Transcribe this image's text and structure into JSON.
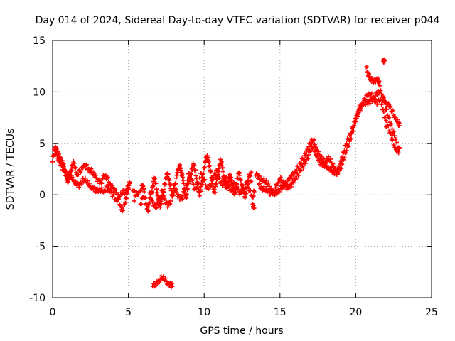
{
  "chart_data": {
    "type": "scatter",
    "title": "Day 014 of 2024, Sidereal Day-to-day VTEC variation (SDTVAR) for receiver p044",
    "xlabel": "GPS time / hours",
    "ylabel": "SDTVAR / TECUs",
    "xlim": [
      0,
      25
    ],
    "ylim": [
      -10,
      15
    ],
    "xticks": [
      0,
      5,
      10,
      15,
      20,
      25
    ],
    "yticks": [
      -10,
      -5,
      0,
      5,
      10,
      15
    ],
    "xtick_labels": [
      "0",
      "5",
      "10",
      "15",
      "20",
      "25"
    ],
    "ytick_labels": [
      "-10",
      "-5",
      "0",
      "5",
      "10",
      "15"
    ],
    "grid": true,
    "marker": "+",
    "series_color": "#ff0000",
    "series": [
      {
        "name": "SDTVAR",
        "points": [
          [
            0.0,
            3.2
          ],
          [
            0.1,
            4.4
          ],
          [
            0.2,
            4.6
          ],
          [
            0.3,
            4.2
          ],
          [
            0.4,
            3.9
          ],
          [
            0.5,
            3.6
          ],
          [
            0.6,
            3.3
          ],
          [
            0.7,
            2.9
          ],
          [
            0.8,
            2.4
          ],
          [
            0.9,
            1.8
          ],
          [
            1.0,
            1.2
          ],
          [
            1.1,
            1.6
          ],
          [
            1.2,
            2.3
          ],
          [
            1.3,
            2.9
          ],
          [
            1.4,
            3.1
          ],
          [
            1.5,
            2.6
          ],
          [
            1.6,
            2.0
          ],
          [
            1.8,
            2.3
          ],
          [
            2.0,
            2.6
          ],
          [
            2.2,
            2.9
          ],
          [
            2.4,
            2.5
          ],
          [
            2.6,
            2.2
          ],
          [
            2.8,
            1.7
          ],
          [
            3.0,
            1.5
          ],
          [
            3.2,
            1.2
          ],
          [
            3.4,
            1.8
          ],
          [
            3.6,
            1.6
          ],
          [
            3.8,
            1.1
          ],
          [
            4.0,
            0.6
          ],
          [
            4.2,
            0.2
          ],
          [
            4.3,
            -0.4
          ],
          [
            4.5,
            -1.1
          ],
          [
            4.6,
            -1.6
          ],
          [
            4.8,
            -0.8
          ],
          [
            4.9,
            0.1
          ],
          [
            5.0,
            0.7
          ],
          [
            5.1,
            1.1
          ],
          [
            0.2,
            3.9
          ],
          [
            0.4,
            3.4
          ],
          [
            0.6,
            2.8
          ],
          [
            0.8,
            2.2
          ],
          [
            1.0,
            2.0
          ],
          [
            1.2,
            1.9
          ],
          [
            1.4,
            1.3
          ],
          [
            1.6,
            0.9
          ],
          [
            1.8,
            1.0
          ],
          [
            2.0,
            1.6
          ],
          [
            2.2,
            1.3
          ],
          [
            2.4,
            0.9
          ],
          [
            2.6,
            0.8
          ],
          [
            2.8,
            0.6
          ],
          [
            3.0,
            0.3
          ],
          [
            3.2,
            0.5
          ],
          [
            3.4,
            0.4
          ],
          [
            3.6,
            0.7
          ],
          [
            3.8,
            0.3
          ],
          [
            4.0,
            0.0
          ],
          [
            4.2,
            -0.5
          ],
          [
            4.4,
            -0.2
          ],
          [
            4.6,
            0.1
          ],
          [
            4.8,
            0.4
          ],
          [
            5.0,
            0.9
          ],
          [
            5.3,
            0.4
          ],
          [
            5.5,
            -0.1
          ],
          [
            5.7,
            0.3
          ],
          [
            5.9,
            0.9
          ],
          [
            6.0,
            0.6
          ],
          [
            6.1,
            -0.3
          ],
          [
            6.2,
            -1.0
          ],
          [
            6.3,
            -1.6
          ],
          [
            6.4,
            -0.8
          ],
          [
            6.5,
            0.1
          ],
          [
            6.6,
            0.9
          ],
          [
            6.7,
            1.6
          ],
          [
            6.8,
            1.1
          ],
          [
            6.9,
            0.2
          ],
          [
            7.0,
            -0.6
          ],
          [
            7.1,
            -1.2
          ],
          [
            7.2,
            -0.5
          ],
          [
            7.3,
            0.3
          ],
          [
            7.4,
            1.0
          ],
          [
            7.5,
            1.7
          ],
          [
            7.6,
            2.1
          ],
          [
            7.7,
            1.4
          ],
          [
            7.8,
            0.6
          ],
          [
            7.9,
            -0.2
          ],
          [
            8.0,
            0.3
          ],
          [
            8.1,
            1.1
          ],
          [
            8.2,
            1.9
          ],
          [
            8.3,
            2.5
          ],
          [
            8.4,
            2.9
          ],
          [
            8.5,
            2.2
          ],
          [
            8.6,
            1.4
          ],
          [
            8.7,
            0.6
          ],
          [
            8.8,
            -0.3
          ],
          [
            8.9,
            0.5
          ],
          [
            9.0,
            1.3
          ],
          [
            9.1,
            2.0
          ],
          [
            9.2,
            2.6
          ],
          [
            9.3,
            2.9
          ],
          [
            9.4,
            2.4
          ],
          [
            9.5,
            1.6
          ],
          [
            9.6,
            0.7
          ],
          [
            9.7,
            -0.1
          ],
          [
            9.8,
            0.8
          ],
          [
            9.9,
            1.7
          ],
          [
            10.0,
            2.6
          ],
          [
            10.1,
            3.3
          ],
          [
            10.2,
            3.8
          ],
          [
            10.3,
            3.2
          ],
          [
            10.4,
            2.4
          ],
          [
            10.5,
            1.6
          ],
          [
            10.6,
            0.8
          ],
          [
            10.7,
            0.2
          ],
          [
            10.8,
            1.1
          ],
          [
            10.9,
            2.0
          ],
          [
            11.0,
            2.9
          ],
          [
            11.1,
            3.3
          ],
          [
            11.2,
            2.6
          ],
          [
            11.3,
            1.8
          ],
          [
            11.4,
            1.1
          ],
          [
            11.5,
            0.6
          ],
          [
            11.6,
            1.3
          ],
          [
            11.7,
            2.0
          ],
          [
            11.8,
            1.4
          ],
          [
            11.9,
            0.7
          ],
          [
            12.0,
            0.1
          ],
          [
            12.1,
            0.8
          ],
          [
            12.2,
            1.6
          ],
          [
            12.3,
            2.1
          ],
          [
            12.4,
            1.5
          ],
          [
            12.5,
            0.9
          ],
          [
            12.6,
            0.3
          ],
          [
            12.7,
            -0.3
          ],
          [
            12.8,
            0.6
          ],
          [
            12.9,
            1.4
          ],
          [
            13.0,
            1.9
          ],
          [
            13.1,
            1.3
          ],
          [
            5.4,
            -0.6
          ],
          [
            5.8,
            -0.9
          ],
          [
            6.0,
            -0.2
          ],
          [
            6.4,
            0.2
          ],
          [
            6.6,
            -0.7
          ],
          [
            6.8,
            -1.3
          ],
          [
            7.0,
            -0.9
          ],
          [
            7.2,
            0.4
          ],
          [
            7.4,
            -0.4
          ],
          [
            7.6,
            -1.2
          ],
          [
            7.8,
            -0.6
          ],
          [
            8.0,
            0.9
          ],
          [
            8.2,
            0.2
          ],
          [
            8.4,
            -0.5
          ],
          [
            8.6,
            -0.1
          ],
          [
            8.8,
            0.9
          ],
          [
            9.0,
            2.1
          ],
          [
            9.2,
            1.4
          ],
          [
            9.4,
            0.6
          ],
          [
            9.6,
            1.1
          ],
          [
            9.8,
            2.1
          ],
          [
            10.0,
            1.4
          ],
          [
            10.2,
            0.7
          ],
          [
            10.4,
            0.9
          ],
          [
            10.6,
            1.5
          ],
          [
            10.8,
            2.4
          ],
          [
            11.0,
            1.6
          ],
          [
            11.2,
            0.9
          ],
          [
            11.4,
            1.7
          ],
          [
            11.6,
            0.9
          ],
          [
            11.8,
            0.4
          ],
          [
            12.0,
            1.1
          ],
          [
            12.2,
            0.5
          ],
          [
            12.4,
            0.2
          ],
          [
            12.6,
            0.6
          ],
          [
            12.8,
            1.1
          ],
          [
            13.0,
            0.4
          ],
          [
            13.2,
            -0.2
          ],
          [
            13.3,
            0.3
          ],
          [
            6.6,
            -8.9
          ],
          [
            6.8,
            -8.6
          ],
          [
            7.0,
            -8.3
          ],
          [
            7.2,
            -8.1
          ],
          [
            7.4,
            -8.3
          ],
          [
            7.6,
            -8.5
          ],
          [
            7.8,
            -8.7
          ],
          [
            7.9,
            -8.9
          ],
          [
            13.1,
            2.2
          ],
          [
            13.2,
            -0.9
          ],
          [
            13.3,
            -1.3
          ],
          [
            13.4,
            1.9
          ],
          [
            13.6,
            1.8
          ],
          [
            13.8,
            1.6
          ],
          [
            14.0,
            1.3
          ],
          [
            14.2,
            1.0
          ],
          [
            14.4,
            0.6
          ],
          [
            14.6,
            0.2
          ],
          [
            14.8,
            0.1
          ],
          [
            15.0,
            0.5
          ],
          [
            15.2,
            0.9
          ],
          [
            15.4,
            1.1
          ],
          [
            15.6,
            1.4
          ],
          [
            15.8,
            1.9
          ],
          [
            16.0,
            2.3
          ],
          [
            16.2,
            2.6
          ],
          [
            16.4,
            3.1
          ],
          [
            16.6,
            3.8
          ],
          [
            16.8,
            4.4
          ],
          [
            17.0,
            4.9
          ],
          [
            17.2,
            5.3
          ],
          [
            17.4,
            4.6
          ],
          [
            17.6,
            3.9
          ],
          [
            17.8,
            3.4
          ],
          [
            18.0,
            3.2
          ],
          [
            18.2,
            3.7
          ],
          [
            18.4,
            3.1
          ],
          [
            18.6,
            2.5
          ],
          [
            18.8,
            2.1
          ],
          [
            19.0,
            2.6
          ],
          [
            19.2,
            3.4
          ],
          [
            19.4,
            4.3
          ],
          [
            19.6,
            5.2
          ],
          [
            19.8,
            6.2
          ],
          [
            20.0,
            7.1
          ],
          [
            20.2,
            8.0
          ],
          [
            20.4,
            8.7
          ],
          [
            20.6,
            9.3
          ],
          [
            20.8,
            9.6
          ],
          [
            21.0,
            9.8
          ],
          [
            21.2,
            9.5
          ],
          [
            21.4,
            9.7
          ],
          [
            21.6,
            10.0
          ],
          [
            21.8,
            9.6
          ],
          [
            22.0,
            8.9
          ],
          [
            22.2,
            8.6
          ],
          [
            22.4,
            8.1
          ],
          [
            22.6,
            7.6
          ],
          [
            22.8,
            7.0
          ],
          [
            22.9,
            6.7
          ],
          [
            13.6,
            1.0
          ],
          [
            13.8,
            0.7
          ],
          [
            14.0,
            0.5
          ],
          [
            14.2,
            0.3
          ],
          [
            14.4,
            0.2
          ],
          [
            14.6,
            0.4
          ],
          [
            14.8,
            0.9
          ],
          [
            15.0,
            1.5
          ],
          [
            15.2,
            1.3
          ],
          [
            15.4,
            0.8
          ],
          [
            15.6,
            0.6
          ],
          [
            15.8,
            1.1
          ],
          [
            16.0,
            1.6
          ],
          [
            16.2,
            1.9
          ],
          [
            16.4,
            2.4
          ],
          [
            16.6,
            3.0
          ],
          [
            16.8,
            3.6
          ],
          [
            17.0,
            4.2
          ],
          [
            17.2,
            4.6
          ],
          [
            17.4,
            3.9
          ],
          [
            17.6,
            3.3
          ],
          [
            17.8,
            2.8
          ],
          [
            18.0,
            2.9
          ],
          [
            18.2,
            2.7
          ],
          [
            18.4,
            2.4
          ],
          [
            18.6,
            2.0
          ],
          [
            18.8,
            2.5
          ],
          [
            19.0,
            3.3
          ],
          [
            19.2,
            4.1
          ],
          [
            19.4,
            5.0
          ],
          [
            19.6,
            5.8
          ],
          [
            19.8,
            6.6
          ],
          [
            20.0,
            7.4
          ],
          [
            20.2,
            8.3
          ],
          [
            20.4,
            8.9
          ],
          [
            20.6,
            9.0
          ],
          [
            20.8,
            8.8
          ],
          [
            21.0,
            9.2
          ],
          [
            21.2,
            9.4
          ],
          [
            21.4,
            8.8
          ],
          [
            21.6,
            9.2
          ],
          [
            21.8,
            8.3
          ],
          [
            22.0,
            7.2
          ],
          [
            22.2,
            6.2
          ],
          [
            22.4,
            5.3
          ],
          [
            22.6,
            4.6
          ],
          [
            22.8,
            4.2
          ],
          [
            22.9,
            4.5
          ],
          [
            20.7,
            12.4
          ],
          [
            20.8,
            11.9
          ],
          [
            20.9,
            11.4
          ],
          [
            21.0,
            11.1
          ],
          [
            21.2,
            11.1
          ],
          [
            21.4,
            11.3
          ],
          [
            21.5,
            11.0
          ],
          [
            21.6,
            10.6
          ],
          [
            21.8,
            13.1
          ],
          [
            21.9,
            13.0
          ],
          [
            21.8,
            9.2
          ],
          [
            22.0,
            8.3
          ],
          [
            22.2,
            7.5
          ],
          [
            22.4,
            6.4
          ],
          [
            22.6,
            5.4
          ],
          [
            22.8,
            4.6
          ],
          [
            22.0,
            6.6
          ],
          [
            22.4,
            5.8
          ]
        ]
      }
    ]
  }
}
